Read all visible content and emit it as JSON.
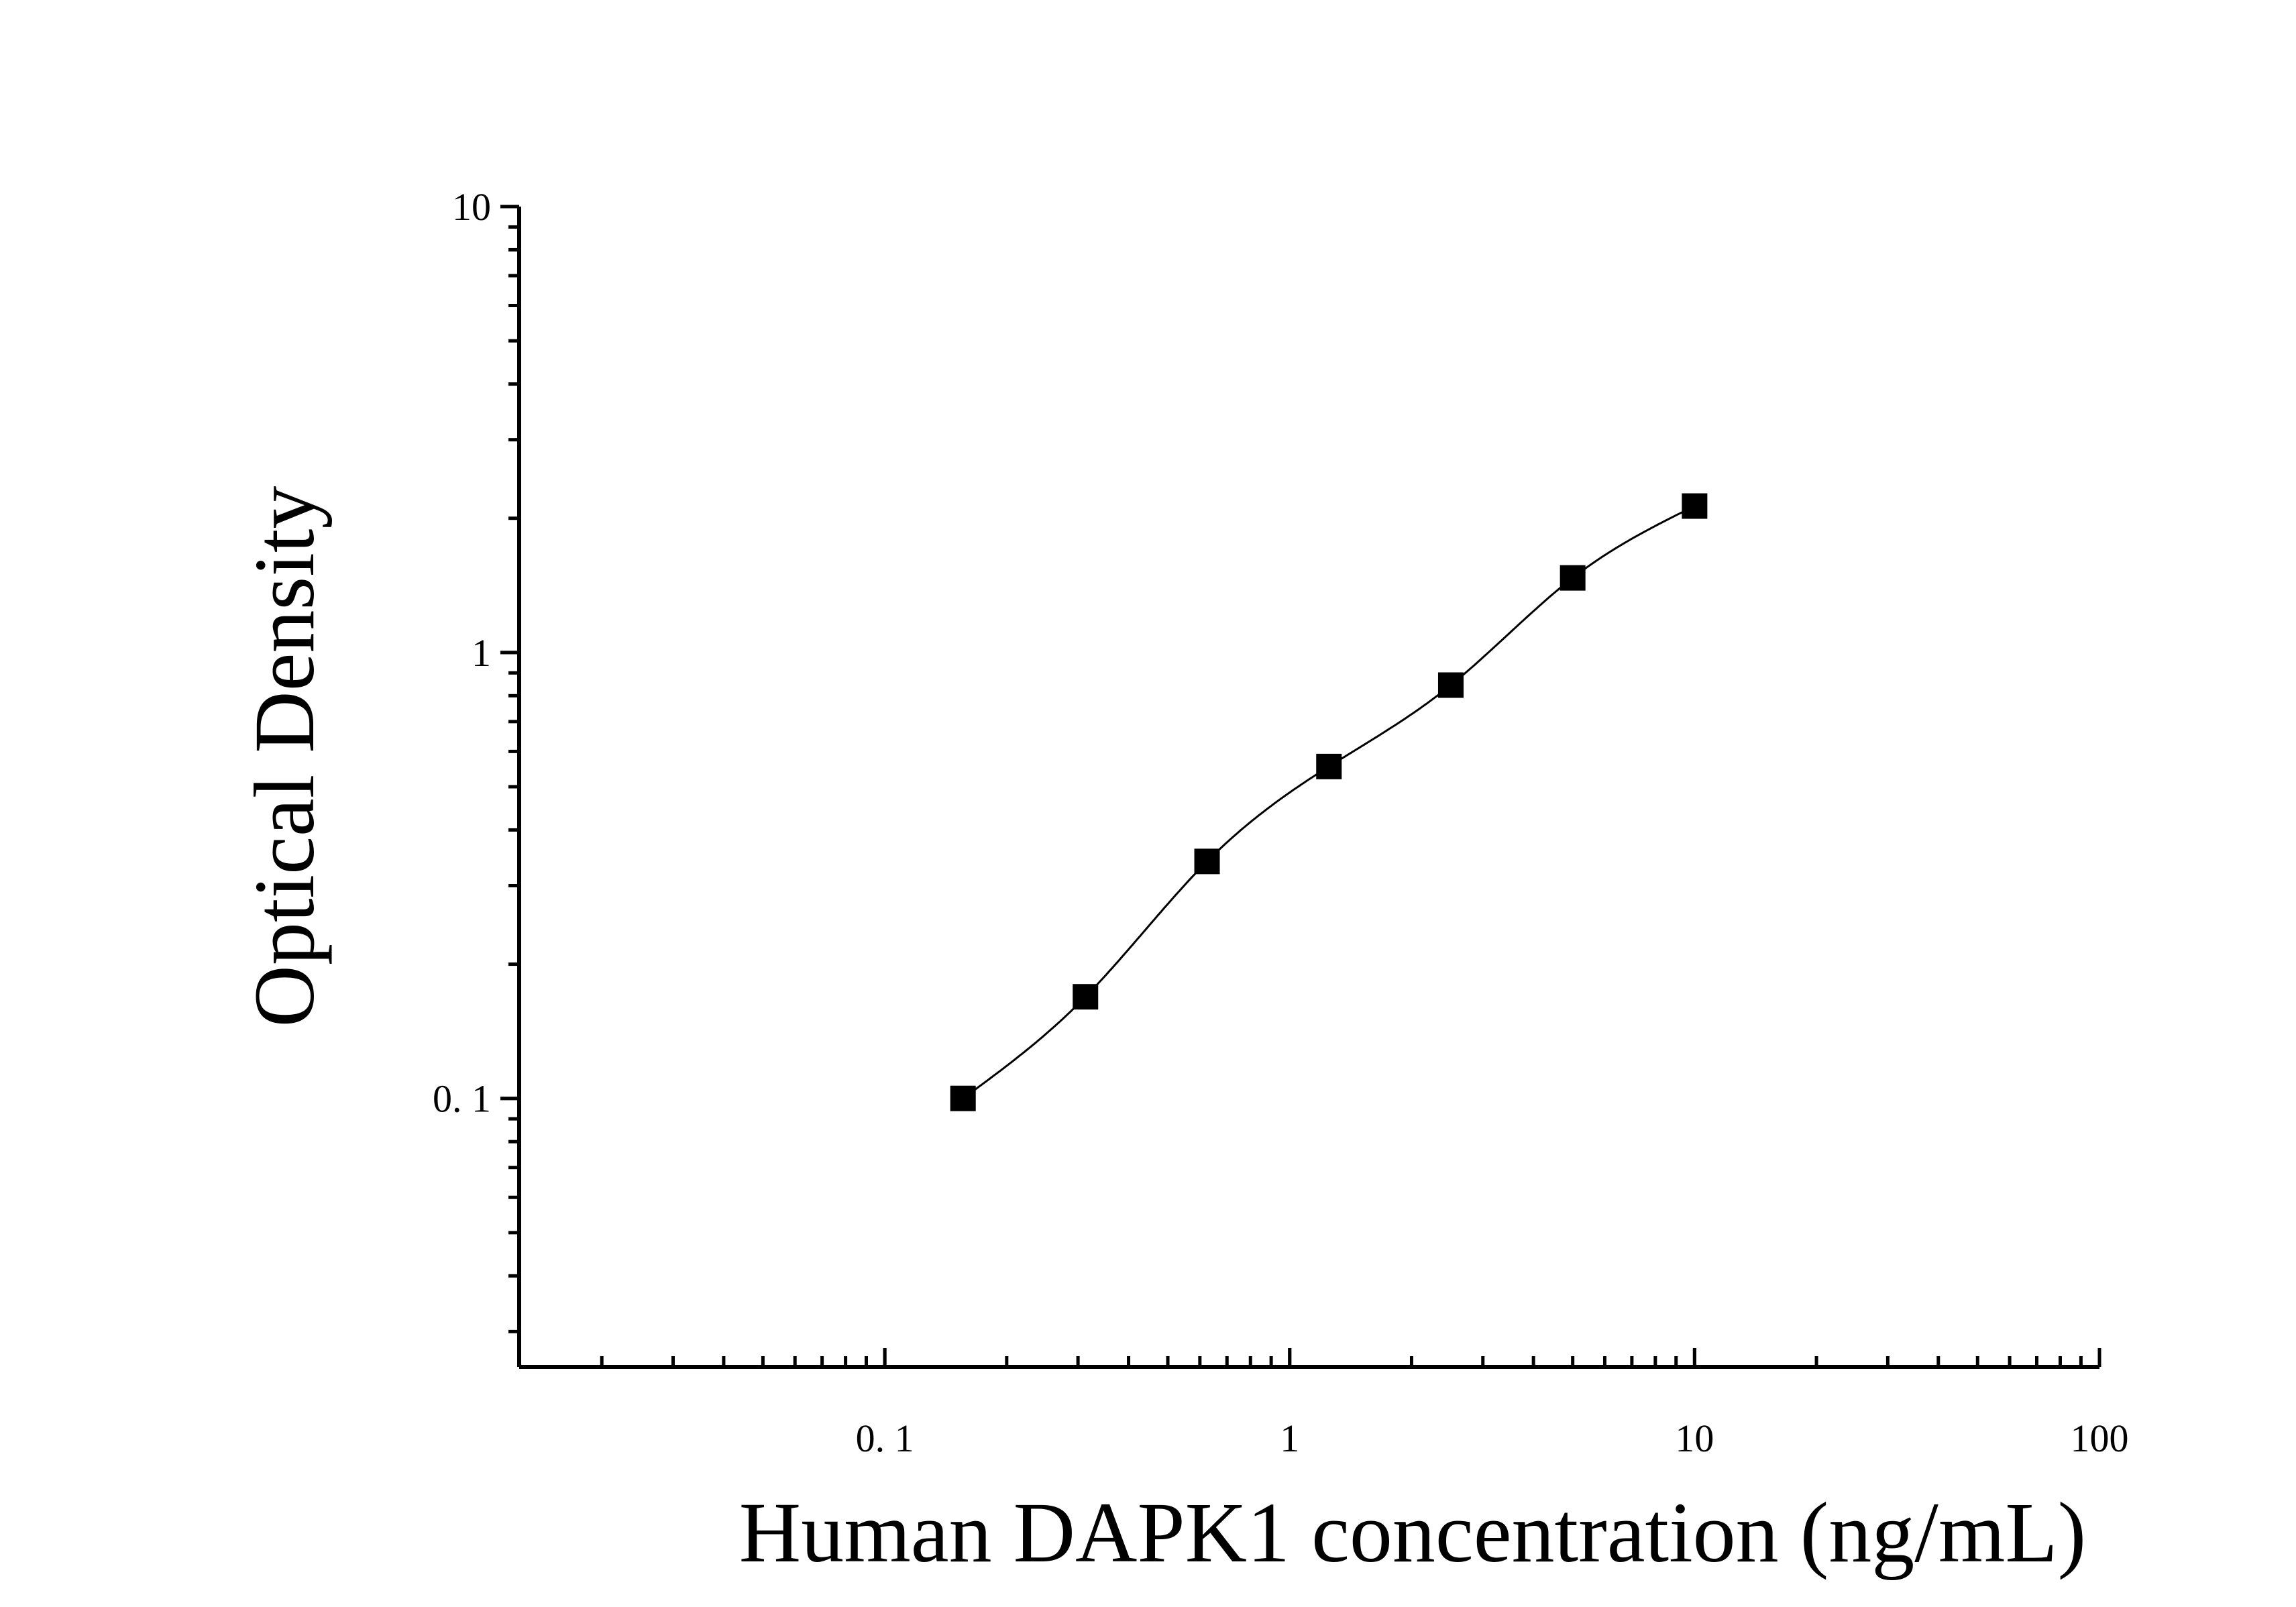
{
  "chart_data": {
    "type": "scatter",
    "title": "",
    "xlabel": "Human DAPK1 concentration (ng/mL)",
    "ylabel": "Optical Density",
    "x_scale": "log",
    "y_scale": "log",
    "xlim": [
      0.0125,
      100
    ],
    "ylim": [
      0.025,
      10
    ],
    "x_ticks": [
      0.1,
      1,
      10,
      100
    ],
    "x_tick_labels": [
      "0. 1",
      "1",
      "10",
      "100"
    ],
    "y_ticks": [
      0.1,
      1,
      10
    ],
    "y_tick_labels": [
      "0. 1",
      "1",
      "10"
    ],
    "grid": false,
    "legend": "none",
    "marker": "square",
    "fit_curve": true,
    "series": [
      {
        "x": [
          0.156,
          0.313,
          0.625,
          1.25,
          2.5,
          5,
          10
        ],
        "y": [
          0.1,
          0.169,
          0.34,
          0.555,
          0.845,
          1.47,
          2.13
        ]
      }
    ]
  },
  "colors": {
    "marker": "#000000",
    "axis": "#000000",
    "curve": "#000000",
    "background": "#ffffff"
  }
}
